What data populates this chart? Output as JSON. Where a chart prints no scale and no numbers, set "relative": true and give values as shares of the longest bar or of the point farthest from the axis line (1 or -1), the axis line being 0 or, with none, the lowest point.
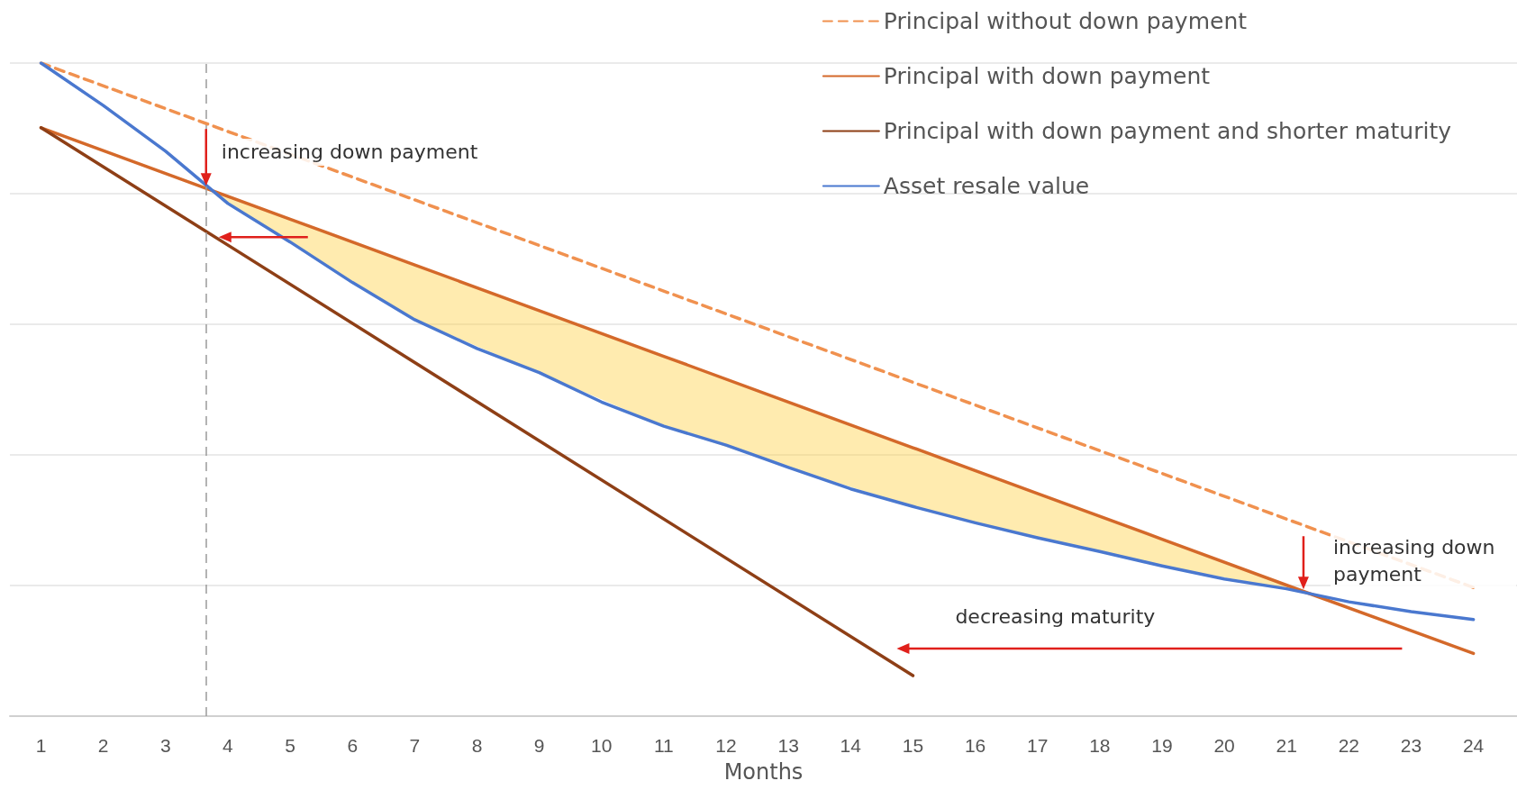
{
  "chart_data": {
    "type": "line",
    "xlabel": "Months",
    "relative": true,
    "xlim": [
      0.5,
      24.7
    ],
    "xticks": [
      1,
      2,
      3,
      4,
      5,
      6,
      7,
      8,
      9,
      10,
      11,
      12,
      13,
      14,
      15,
      16,
      17,
      18,
      19,
      20,
      21,
      22,
      23,
      24
    ],
    "grid": "y",
    "legend": "top right",
    "marker": "none",
    "series": [
      {
        "name": "Principal without down payment",
        "color": "#f0914f",
        "line_style": "dashed",
        "x": [
          1,
          24
        ],
        "values": [
          1.0,
          0.197
        ]
      },
      {
        "name": "Principal with down payment",
        "color": "#d4692a",
        "x": [
          1,
          3.65,
          5,
          7,
          9,
          11,
          13,
          15,
          17,
          19,
          21.3,
          24
        ],
        "values": [
          0.901,
          0.808,
          0.761,
          0.691,
          0.621,
          0.551,
          0.481,
          0.411,
          0.341,
          0.271,
          0.19,
          0.096
        ],
        "lower": [
          null,
          0.808,
          0.726,
          0.607,
          0.526,
          0.444,
          0.381,
          0.321,
          0.273,
          0.23,
          0.19,
          null
        ],
        "upper": [
          null,
          0.808,
          0.761,
          0.691,
          0.621,
          0.551,
          0.481,
          0.411,
          0.341,
          0.271,
          0.19,
          null
        ]
      },
      {
        "name": "Principal with down payment and shorter maturity",
        "color": "#8e3f16",
        "x": [
          1,
          15
        ],
        "values": [
          0.901,
          0.062
        ]
      },
      {
        "name": "Asset resale value",
        "color": "#4a78cf",
        "x": [
          1,
          2,
          3,
          4,
          5,
          6,
          7,
          8,
          9,
          10,
          11,
          12,
          13,
          14,
          15,
          16,
          17,
          18,
          19,
          20,
          21,
          22,
          23,
          24
        ],
        "values": [
          1.0,
          0.935,
          0.865,
          0.785,
          0.726,
          0.664,
          0.607,
          0.563,
          0.526,
          0.481,
          0.444,
          0.415,
          0.381,
          0.348,
          0.321,
          0.296,
          0.273,
          0.252,
          0.23,
          0.21,
          0.195,
          0.175,
          0.16,
          0.148
        ]
      }
    ],
    "ref_lines": [
      {
        "axis": "x",
        "value": 3.65,
        "line_style": "dashed",
        "color": "#9a9a9a"
      }
    ],
    "annotations": [
      {
        "text": "increasing down payment",
        "x": 3.65,
        "y": 0.808
      },
      {
        "text": "increasing down payment",
        "x": 21.3,
        "y": 0.19
      },
      "decreasing maturity"
    ]
  }
}
